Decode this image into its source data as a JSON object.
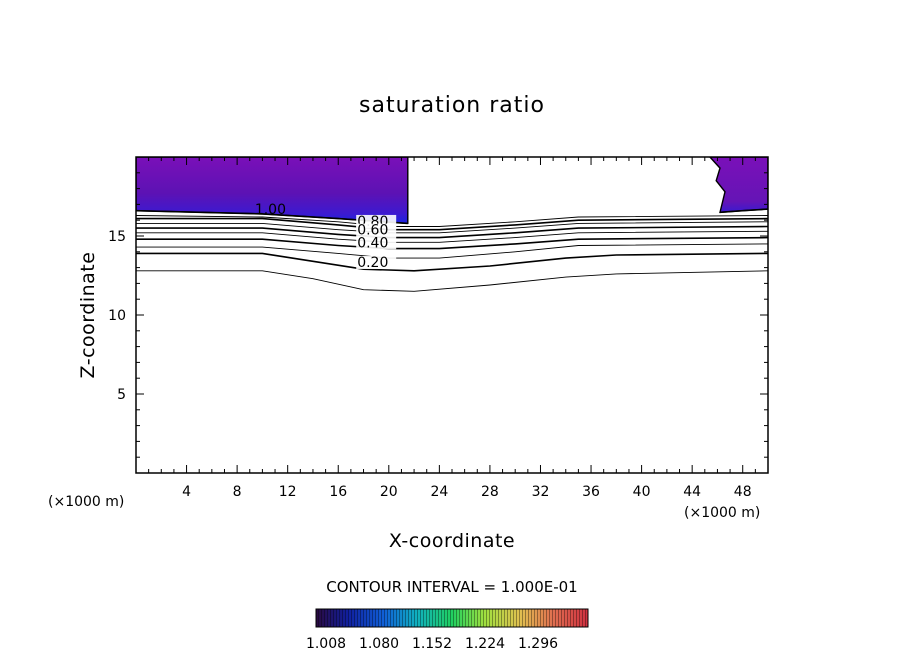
{
  "chart_data": {
    "type": "contour",
    "title": "saturation ratio",
    "xlabel": "X-coordinate",
    "ylabel": "Z-coordinate",
    "x_units": "(×1000 m)",
    "y_units": "(×1000 m)",
    "xlim": [
      0,
      50
    ],
    "ylim": [
      0,
      20
    ],
    "xticks": [
      4,
      8,
      12,
      16,
      20,
      24,
      28,
      32,
      36,
      40,
      44,
      48
    ],
    "xtick_labels": [
      "4",
      "8",
      "12",
      "16",
      "20",
      "24",
      "28",
      "32",
      "36",
      "40",
      "44",
      "48"
    ],
    "yticks": [
      5,
      10,
      15
    ],
    "ytick_labels": [
      "5",
      "10",
      "15"
    ],
    "contour_interval_text": "CONTOUR INTERVAL = 1.000E-01",
    "contour_labels": [
      "1.00",
      "0.80",
      "0.60",
      "0.40",
      "0.20"
    ],
    "contour_lines": [
      {
        "level": 0.1,
        "points": [
          [
            0,
            12.8
          ],
          [
            10,
            12.8
          ],
          [
            14,
            12.3
          ],
          [
            18,
            11.6
          ],
          [
            22,
            11.5
          ],
          [
            28,
            11.9
          ],
          [
            34,
            12.4
          ],
          [
            38,
            12.6
          ],
          [
            50,
            12.8
          ]
        ]
      },
      {
        "level": 0.2,
        "points": [
          [
            0,
            13.9
          ],
          [
            10,
            13.9
          ],
          [
            14,
            13.4
          ],
          [
            18,
            12.9
          ],
          [
            22,
            12.8
          ],
          [
            28,
            13.1
          ],
          [
            34,
            13.6
          ],
          [
            38,
            13.8
          ],
          [
            50,
            13.9
          ]
        ]
      },
      {
        "level": 0.3,
        "points": [
          [
            0,
            14.3
          ],
          [
            10,
            14.3
          ],
          [
            16,
            13.9
          ],
          [
            20,
            13.6
          ],
          [
            24,
            13.6
          ],
          [
            30,
            14.0
          ],
          [
            35,
            14.4
          ],
          [
            50,
            14.5
          ]
        ]
      },
      {
        "level": 0.4,
        "points": [
          [
            0,
            14.8
          ],
          [
            10,
            14.8
          ],
          [
            16,
            14.4
          ],
          [
            20,
            14.2
          ],
          [
            24,
            14.2
          ],
          [
            30,
            14.5
          ],
          [
            35,
            14.8
          ],
          [
            50,
            14.9
          ]
        ]
      },
      {
        "level": 0.5,
        "points": [
          [
            0,
            15.2
          ],
          [
            10,
            15.2
          ],
          [
            16,
            14.8
          ],
          [
            20,
            14.6
          ],
          [
            24,
            14.6
          ],
          [
            30,
            14.9
          ],
          [
            35,
            15.2
          ],
          [
            50,
            15.3
          ]
        ]
      },
      {
        "level": 0.6,
        "points": [
          [
            0,
            15.5
          ],
          [
            10,
            15.5
          ],
          [
            16,
            15.1
          ],
          [
            20,
            14.9
          ],
          [
            24,
            14.9
          ],
          [
            30,
            15.2
          ],
          [
            35,
            15.5
          ],
          [
            50,
            15.6
          ]
        ]
      },
      {
        "level": 0.7,
        "points": [
          [
            0,
            15.8
          ],
          [
            10,
            15.8
          ],
          [
            16,
            15.4
          ],
          [
            20,
            15.2
          ],
          [
            24,
            15.2
          ],
          [
            30,
            15.5
          ],
          [
            35,
            15.8
          ],
          [
            50,
            15.9
          ]
        ]
      },
      {
        "level": 0.8,
        "points": [
          [
            0,
            16.1
          ],
          [
            10,
            16.1
          ],
          [
            16,
            15.7
          ],
          [
            20,
            15.4
          ],
          [
            24,
            15.4
          ],
          [
            30,
            15.7
          ],
          [
            35,
            16.0
          ],
          [
            50,
            16.1
          ]
        ]
      },
      {
        "level": 0.9,
        "points": [
          [
            0,
            16.3
          ],
          [
            10,
            16.2
          ],
          [
            16,
            15.9
          ],
          [
            20,
            15.6
          ],
          [
            24,
            15.6
          ],
          [
            30,
            15.9
          ],
          [
            35,
            16.2
          ],
          [
            50,
            16.3
          ]
        ]
      },
      {
        "level": 1.0,
        "points": [
          [
            0,
            16.6
          ],
          [
            10,
            16.4
          ],
          [
            16,
            16.1
          ],
          [
            21.5,
            15.8
          ]
        ]
      },
      {
        "level": 1.0,
        "points": [
          [
            46.2,
            16.5
          ],
          [
            48,
            16.6
          ],
          [
            50,
            16.7
          ]
        ]
      }
    ],
    "filled_regions": [
      {
        "name": "left-supersaturated",
        "outline": [
          [
            0,
            20
          ],
          [
            21.5,
            20
          ],
          [
            21.5,
            15.8
          ],
          [
            16,
            16.1
          ],
          [
            10,
            16.4
          ],
          [
            0,
            16.6
          ]
        ]
      },
      {
        "name": "right-supersaturated",
        "outline": [
          [
            45.4,
            20
          ],
          [
            50,
            20
          ],
          [
            50,
            16.7
          ],
          [
            48,
            16.6
          ],
          [
            46.2,
            16.5
          ],
          [
            46.6,
            17.8
          ],
          [
            45.9,
            18.5
          ],
          [
            46.2,
            19.3
          ]
        ]
      }
    ],
    "colorbar": {
      "tick_labels": [
        "1.008",
        "1.080",
        "1.152",
        "1.224",
        "1.296"
      ],
      "colors": [
        "#2a0a40",
        "#1020a0",
        "#1060d8",
        "#10b0c0",
        "#20d060",
        "#a0e040",
        "#e0c050",
        "#e07050",
        "#d03040"
      ]
    }
  }
}
